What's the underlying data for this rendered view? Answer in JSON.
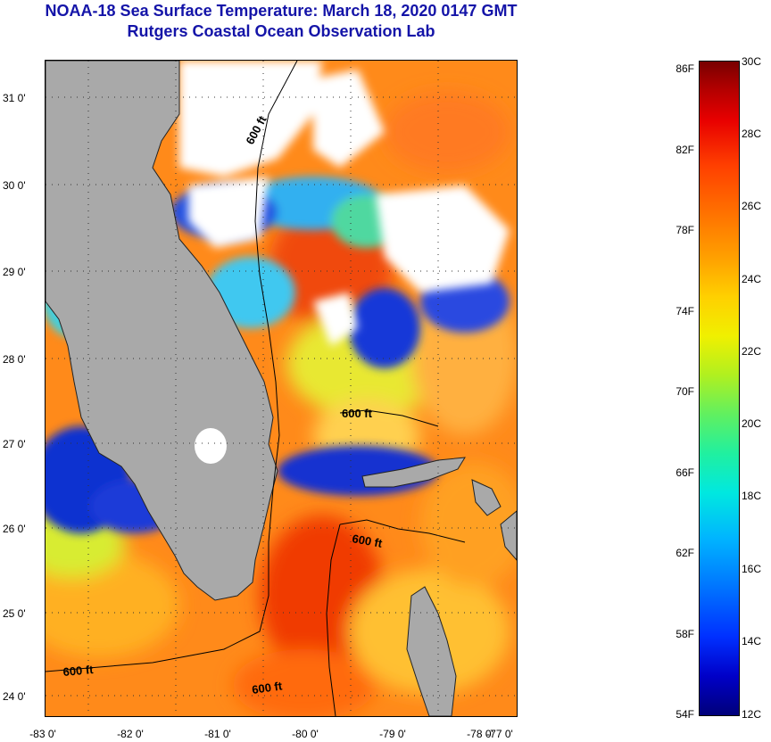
{
  "title": {
    "line1": "NOAA-18 Sea Surface Temperature:  March 18, 2020 0147 GMT",
    "line2": "Rutgers Coastal Ocean Observation Lab"
  },
  "map": {
    "latitude_labels": [
      "31 0'",
      "30 0'",
      "29 0'",
      "28 0'",
      "27 0'",
      "26 0'",
      "25 0'",
      "24 0'"
    ],
    "longitude_labels": [
      "-83 0'",
      "-82 0'",
      "-81 0'",
      "-80 0'",
      "-79 0'",
      "-78 0'",
      "-77 0'"
    ],
    "isobath_labels": [
      "600 ft",
      "600 ft",
      "600 ft",
      "600 ft",
      "600 ft"
    ],
    "land_color": "#a9a9a9",
    "cloud_color": "#ffffff"
  },
  "colorbar": {
    "fahrenheit_labels": [
      "86F",
      "82F",
      "78F",
      "74F",
      "70F",
      "66F",
      "62F",
      "58F",
      "54F"
    ],
    "celsius_labels": [
      "30C",
      "28C",
      "26C",
      "24C",
      "22C",
      "20C",
      "18C",
      "16C",
      "14C",
      "12C"
    ]
  }
}
